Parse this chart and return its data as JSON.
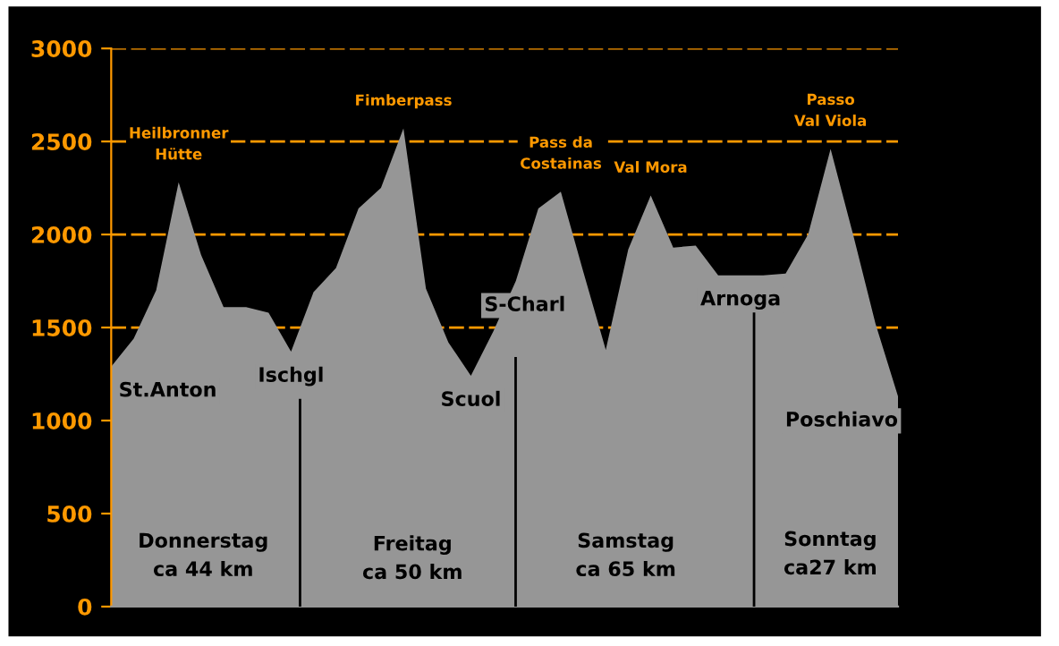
{
  "chart_data": {
    "type": "area",
    "categories": [
      null,
      null,
      null,
      null,
      null,
      null,
      null,
      null,
      null,
      null,
      null,
      null,
      null,
      null,
      null,
      null,
      null,
      null,
      null,
      null,
      null,
      null,
      null,
      null,
      null,
      null,
      null,
      null,
      null,
      null,
      null,
      null,
      null,
      null,
      null,
      null
    ],
    "series": [
      {
        "color": "#969696",
        "values": [
          1290,
          1440,
          1700,
          2280,
          1890,
          1610,
          1610,
          1580,
          1370,
          1690,
          1820,
          2140,
          2250,
          2570,
          1710,
          1420,
          1240,
          1480,
          1750,
          2140,
          2230,
          1800,
          1380,
          1920,
          2210,
          1930,
          1940,
          1780,
          1780,
          1780,
          1790,
          2000,
          2460,
          2000,
          1520,
          1130
        ],
        "value_labels": [
          "St.Anton",
          null,
          null,
          "Heilbronner\nHütte",
          null,
          null,
          null,
          null,
          "Ischgl",
          null,
          null,
          null,
          null,
          "Fimberpass",
          null,
          null,
          "Scuol",
          null,
          "S-Charl",
          null,
          "Pass da\nCostainas",
          null,
          null,
          null,
          "Val Mora",
          null,
          null,
          null,
          "Arnoga",
          null,
          null,
          null,
          "Passo\nVal Viola",
          null,
          null,
          "Poschiavo"
        ]
      }
    ],
    "ylim": [
      0,
      3000
    ],
    "yticks": [
      0,
      500,
      1000,
      1500,
      2000,
      2500,
      3000
    ],
    "grid": "y",
    "tick_labels": "y",
    "annotations": [
      "Donnerstag\nca 44 km",
      "Freitag\nca 50 km",
      "Samstag\nca 65 km",
      "Sonntag\nca27 km"
    ]
  }
}
